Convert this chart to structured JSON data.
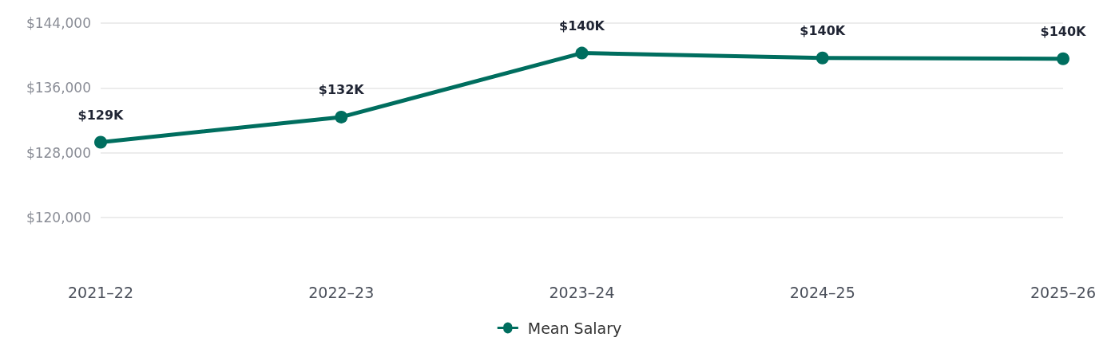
{
  "chart_data": {
    "type": "line",
    "categories": [
      "2021–22",
      "2022–23",
      "2023–24",
      "2024–25",
      "2025–26"
    ],
    "series": [
      {
        "name": "Mean Salary",
        "color": "#006e5f",
        "values": [
          129300,
          132400,
          140300,
          139700,
          139600
        ],
        "value_labels": [
          "$129K",
          "$132K",
          "$140K",
          "$140K",
          "$140K"
        ]
      }
    ],
    "ylim": [
      120000,
      144000
    ],
    "yticks": [
      {
        "value": 120000,
        "label": "$120,000"
      },
      {
        "value": 128000,
        "label": "$128,000"
      },
      {
        "value": 136000,
        "label": "$136,000"
      },
      {
        "value": 144000,
        "label": "$144,000"
      }
    ],
    "grid": "y",
    "legend": "bottom",
    "marker": "circle",
    "line_style": "solid"
  }
}
